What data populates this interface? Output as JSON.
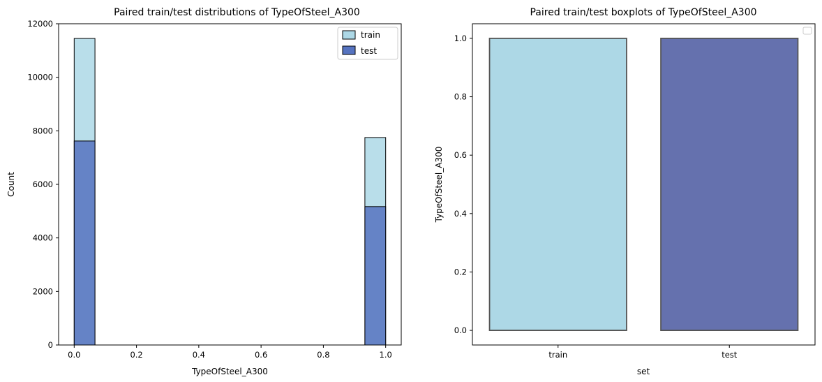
{
  "chart_data": [
    {
      "type": "bar",
      "subtype": "histogram",
      "title": "Paired train/test distributions of TypeOfSteel_A300",
      "xlabel": "TypeOfSteel_A300",
      "ylabel": "Count",
      "xlim": [
        -0.05,
        1.05
      ],
      "ylim": [
        0,
        12000
      ],
      "xticks": [
        "0.0",
        "0.2",
        "0.4",
        "0.6",
        "0.8",
        "1.0"
      ],
      "yticks": [
        "0",
        "2000",
        "4000",
        "6000",
        "8000",
        "10000",
        "12000"
      ],
      "bin_edges": [
        0.0,
        0.0667,
        0.1333,
        0.2,
        0.2667,
        0.3333,
        0.4,
        0.4667,
        0.5333,
        0.6,
        0.6667,
        0.7333,
        0.8,
        0.8667,
        0.9333,
        1.0
      ],
      "series": [
        {
          "name": "train",
          "color": "#add8e6",
          "values": [
            11450,
            0,
            0,
            0,
            0,
            0,
            0,
            0,
            0,
            0,
            0,
            0,
            0,
            0,
            7750
          ]
        },
        {
          "name": "test",
          "color": "#5673c0",
          "values": [
            7620,
            0,
            0,
            0,
            0,
            0,
            0,
            0,
            0,
            0,
            0,
            0,
            0,
            0,
            5170
          ]
        }
      ],
      "legend": {
        "position": "top-right",
        "entries": [
          "train",
          "test"
        ]
      },
      "grid": false
    },
    {
      "type": "box",
      "title": "Paired train/test boxplots of TypeOfSteel_A300",
      "xlabel": "set",
      "ylabel": "TypeOfSteel_A300",
      "ylim": [
        -0.05,
        1.05
      ],
      "yticks": [
        "0.0",
        "0.2",
        "0.4",
        "0.6",
        "0.8",
        "1.0"
      ],
      "categories": [
        "train",
        "test"
      ],
      "series": [
        {
          "name": "train",
          "color": "#add8e6",
          "q1": 0,
          "median": 0,
          "q3": 1,
          "whisker_low": 0,
          "whisker_high": 1
        },
        {
          "name": "test",
          "color": "#6571ae",
          "q1": 0,
          "median": 0,
          "q3": 1,
          "whisker_low": 0,
          "whisker_high": 1
        }
      ],
      "legend": {
        "position": "top-right",
        "entries": []
      },
      "grid": false
    }
  ]
}
